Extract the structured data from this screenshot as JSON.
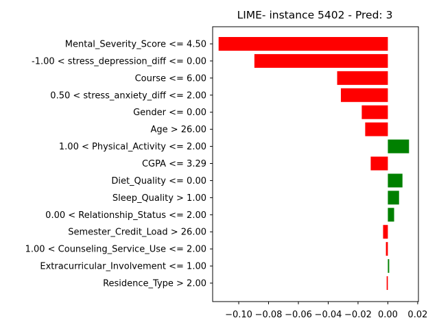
{
  "chart_data": {
    "type": "bar",
    "orientation": "horizontal",
    "title": "LIME- instance 5402 - Pred: 3",
    "xlabel": "",
    "ylabel": "",
    "xlim": [
      -0.1175,
      0.0205
    ],
    "xticks": [
      -0.1,
      -0.08,
      -0.06,
      -0.04,
      -0.02,
      0.0,
      0.02
    ],
    "xtick_labels": [
      "−0.10",
      "−0.08",
      "−0.06",
      "−0.04",
      "−0.02",
      "0.00",
      "0.02"
    ],
    "grid": false,
    "legend": false,
    "positive_color": "#008000",
    "negative_color": "#ff0000",
    "categories": [
      "Mental_Severity_Score <= 4.50",
      "-1.00 < stress_depression_diff <= 0.00",
      "Course <= 6.00",
      "0.50 < stress_anxiety_diff <= 2.00",
      "Gender <= 0.00",
      "Age > 26.00",
      "1.00 < Physical_Activity <= 2.00",
      "CGPA <= 3.29",
      "Diet_Quality <= 0.00",
      "Sleep_Quality > 1.00",
      "0.00 < Relationship_Status <= 2.00",
      "Semester_Credit_Load > 26.00",
      "1.00 < Counseling_Service_Use <= 2.00",
      "Extracurricular_Involvement <= 1.00",
      "Residence_Type > 2.00"
    ],
    "values": [
      -0.1135,
      -0.0895,
      -0.034,
      -0.0315,
      -0.0175,
      -0.0152,
      0.0142,
      -0.0115,
      0.0098,
      0.0075,
      0.0042,
      -0.0032,
      -0.0013,
      0.0009,
      -0.0008
    ]
  }
}
